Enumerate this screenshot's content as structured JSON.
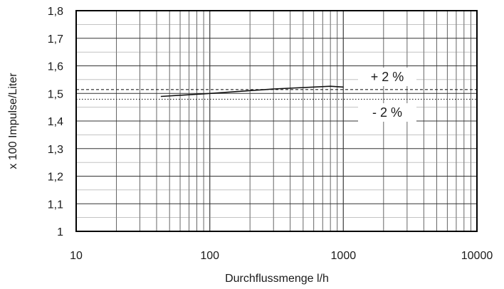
{
  "chart_data": {
    "type": "line",
    "xlabel": "Durchflussmenge l/h",
    "ylabel": "x 100 Impulse/Liter",
    "x_scale": "log",
    "xlim": [
      10,
      10000
    ],
    "ylim": [
      1.0,
      1.8
    ],
    "grid": true,
    "x_ticks": [
      {
        "value": 10,
        "label": "10"
      },
      {
        "value": 100,
        "label": "100"
      },
      {
        "value": 1000,
        "label": "1000"
      },
      {
        "value": 10000,
        "label": "10000"
      }
    ],
    "y_ticks": [
      {
        "value": 1.0,
        "label": "1"
      },
      {
        "value": 1.1,
        "label": "1,1"
      },
      {
        "value": 1.2,
        "label": "1,2"
      },
      {
        "value": 1.3,
        "label": "1,3"
      },
      {
        "value": 1.4,
        "label": "1,4"
      },
      {
        "value": 1.5,
        "label": "1,5"
      },
      {
        "value": 1.6,
        "label": "1,6"
      },
      {
        "value": 1.7,
        "label": "1,7"
      },
      {
        "value": 1.8,
        "label": "1,8"
      }
    ],
    "series": [
      {
        "x": [
          43,
          100,
          300,
          800,
          1000
        ],
        "y": [
          1.489,
          1.5,
          1.516,
          1.526,
          1.523
        ],
        "color": "#111111"
      }
    ],
    "reference_lines": [
      {
        "y": 1.514,
        "style": "dashed",
        "label": "+ 2 %"
      },
      {
        "y": 1.479,
        "style": "dotted",
        "label": "- 2 %"
      }
    ],
    "colors": {
      "line": "#111111",
      "grid": "#555555",
      "frame": "#000000",
      "text": "#1a1a1a"
    }
  }
}
